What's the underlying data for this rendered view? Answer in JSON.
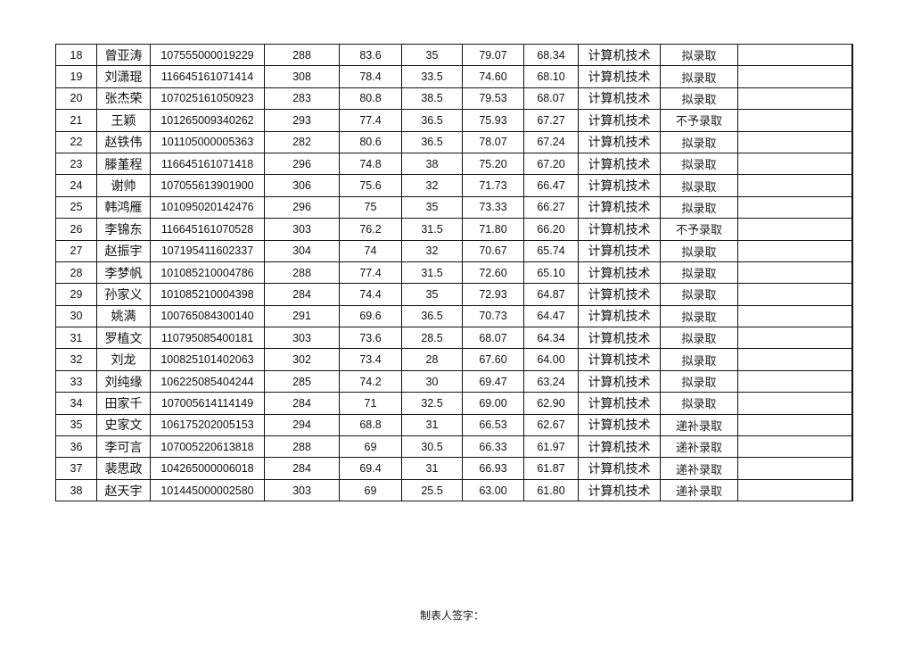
{
  "table": {
    "rows": [
      [
        "18",
        "曾亚涛",
        "107555000019229",
        "288",
        "83.6",
        "35",
        "79.07",
        "68.34",
        "计算机技术",
        "拟录取",
        ""
      ],
      [
        "19",
        "刘潇琨",
        "116645161071414",
        "308",
        "78.4",
        "33.5",
        "74.60",
        "68.10",
        "计算机技术",
        "拟录取",
        ""
      ],
      [
        "20",
        "张杰荣",
        "107025161050923",
        "283",
        "80.8",
        "38.5",
        "79.53",
        "68.07",
        "计算机技术",
        "拟录取",
        ""
      ],
      [
        "21",
        "王颖",
        "101265009340262",
        "293",
        "77.4",
        "36.5",
        "75.93",
        "67.27",
        "计算机技术",
        "不予录取",
        ""
      ],
      [
        "22",
        "赵铁伟",
        "101105000005363",
        "282",
        "80.6",
        "36.5",
        "78.07",
        "67.24",
        "计算机技术",
        "拟录取",
        ""
      ],
      [
        "23",
        "滕堇程",
        "116645161071418",
        "296",
        "74.8",
        "38",
        "75.20",
        "67.20",
        "计算机技术",
        "拟录取",
        ""
      ],
      [
        "24",
        "谢帅",
        "107055613901900",
        "306",
        "75.6",
        "32",
        "71.73",
        "66.47",
        "计算机技术",
        "拟录取",
        ""
      ],
      [
        "25",
        "韩鸿雁",
        "101095020142476",
        "296",
        "75",
        "35",
        "73.33",
        "66.27",
        "计算机技术",
        "拟录取",
        ""
      ],
      [
        "26",
        "李锦东",
        "116645161070528",
        "303",
        "76.2",
        "31.5",
        "71.80",
        "66.20",
        "计算机技术",
        "不予录取",
        ""
      ],
      [
        "27",
        "赵振宇",
        "107195411602337",
        "304",
        "74",
        "32",
        "70.67",
        "65.74",
        "计算机技术",
        "拟录取",
        ""
      ],
      [
        "28",
        "李梦帆",
        "101085210004786",
        "288",
        "77.4",
        "31.5",
        "72.60",
        "65.10",
        "计算机技术",
        "拟录取",
        ""
      ],
      [
        "29",
        "孙家义",
        "101085210004398",
        "284",
        "74.4",
        "35",
        "72.93",
        "64.87",
        "计算机技术",
        "拟录取",
        ""
      ],
      [
        "30",
        "姚满",
        "100765084300140",
        "291",
        "69.6",
        "36.5",
        "70.73",
        "64.47",
        "计算机技术",
        "拟录取",
        ""
      ],
      [
        "31",
        "罗植文",
        "110795085400181",
        "303",
        "73.6",
        "28.5",
        "68.07",
        "64.34",
        "计算机技术",
        "拟录取",
        ""
      ],
      [
        "32",
        "刘龙",
        "100825101402063",
        "302",
        "73.4",
        "28",
        "67.60",
        "64.00",
        "计算机技术",
        "拟录取",
        ""
      ],
      [
        "33",
        "刘纯缘",
        "106225085404244",
        "285",
        "74.2",
        "30",
        "69.47",
        "63.24",
        "计算机技术",
        "拟录取",
        ""
      ],
      [
        "34",
        "田家千",
        "107005614114149",
        "284",
        "71",
        "32.5",
        "69.00",
        "62.90",
        "计算机技术",
        "拟录取",
        ""
      ],
      [
        "35",
        "史家文",
        "106175202005153",
        "294",
        "68.8",
        "31",
        "66.53",
        "62.67",
        "计算机技术",
        "递补录取",
        ""
      ],
      [
        "36",
        "李可言",
        "107005220613818",
        "288",
        "69",
        "30.5",
        "66.33",
        "61.97",
        "计算机技术",
        "递补录取",
        ""
      ],
      [
        "37",
        "裴思政",
        "104265000006018",
        "284",
        "69.4",
        "31",
        "66.93",
        "61.87",
        "计算机技术",
        "递补录取",
        ""
      ],
      [
        "38",
        "赵天宇",
        "101445000002580",
        "303",
        "69",
        "25.5",
        "63.00",
        "61.80",
        "计算机技术",
        "递补录取",
        ""
      ]
    ]
  },
  "footer": {
    "signature_label": "制表人签字："
  }
}
